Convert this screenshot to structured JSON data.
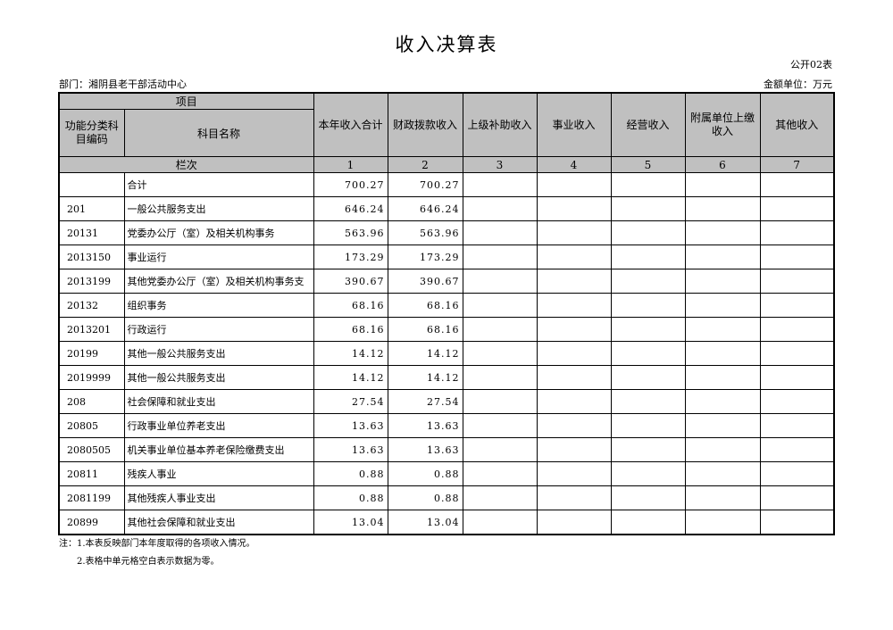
{
  "title": "收入决算表",
  "form_no": "公开02表",
  "department": "部门：湘阴县老干部活动中心",
  "unit": "金额单位：万元",
  "header": {
    "item": "项目",
    "code": "功能分类科目编码",
    "name": "科目名称",
    "columns": [
      "本年收入合计",
      "财政拨款收入",
      "上级补助收入",
      "事业收入",
      "经营收入",
      "附属单位上缴收入",
      "其他收入"
    ],
    "row_index_label": "栏次",
    "column_numbers": [
      "1",
      "2",
      "3",
      "4",
      "5",
      "6",
      "7"
    ]
  },
  "rows": [
    {
      "code": "",
      "name": "合计",
      "total": "700.27",
      "fiscal": "700.27"
    },
    {
      "code": "201",
      "name": "一般公共服务支出",
      "total": "646.24",
      "fiscal": "646.24"
    },
    {
      "code": "20131",
      "name": "党委办公厅（室）及相关机构事务",
      "total": "563.96",
      "fiscal": "563.96"
    },
    {
      "code": "2013150",
      "name": "事业运行",
      "total": "173.29",
      "fiscal": "173.29"
    },
    {
      "code": "2013199",
      "name": "其他党委办公厅（室）及相关机构事务支",
      "total": "390.67",
      "fiscal": "390.67"
    },
    {
      "code": "20132",
      "name": "组织事务",
      "total": "68.16",
      "fiscal": "68.16"
    },
    {
      "code": "2013201",
      "name": "行政运行",
      "total": "68.16",
      "fiscal": "68.16"
    },
    {
      "code": "20199",
      "name": "其他一般公共服务支出",
      "total": "14.12",
      "fiscal": "14.12"
    },
    {
      "code": "2019999",
      "name": "其他一般公共服务支出",
      "total": "14.12",
      "fiscal": "14.12"
    },
    {
      "code": "208",
      "name": "社会保障和就业支出",
      "total": "27.54",
      "fiscal": "27.54"
    },
    {
      "code": "20805",
      "name": "行政事业单位养老支出",
      "total": "13.63",
      "fiscal": "13.63"
    },
    {
      "code": "2080505",
      "name": "机关事业单位基本养老保险缴费支出",
      "total": "13.63",
      "fiscal": "13.63"
    },
    {
      "code": "20811",
      "name": "残疾人事业",
      "total": "0.88",
      "fiscal": "0.88"
    },
    {
      "code": "2081199",
      "name": "其他残疾人事业支出",
      "total": "0.88",
      "fiscal": "0.88"
    },
    {
      "code": "20899",
      "name": "其他社会保障和就业支出",
      "total": "13.04",
      "fiscal": "13.04"
    }
  ],
  "notes": [
    "注：1.本表反映部门本年度取得的各项收入情况。",
    "2.表格中单元格空白表示数据为零。"
  ]
}
